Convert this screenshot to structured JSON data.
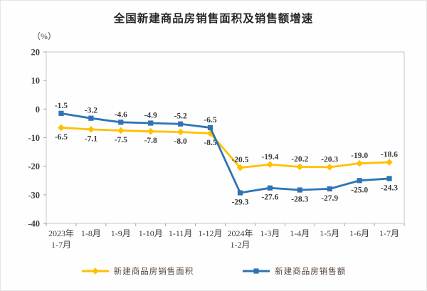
{
  "page": {
    "background": "#ffffff",
    "border_color": "#e6e6e6"
  },
  "chart_data": {
    "type": "line",
    "title": "全国新建商品房销售面积及销售额增速",
    "unit_label": "（%）",
    "xlabel": "",
    "ylabel": "（%）",
    "ylim": [
      -40,
      20
    ],
    "ytick_step": 10,
    "yticks": [
      20,
      10,
      0,
      -10,
      -20,
      -30,
      -40
    ],
    "grid": false,
    "legend_position": "bottom",
    "categories": [
      [
        "2023年",
        "1-7月"
      ],
      [
        "1-8月"
      ],
      [
        "1-9月"
      ],
      [
        "1-10月"
      ],
      [
        "1-11月"
      ],
      [
        "1-12月"
      ],
      [
        "2024年",
        "1-2月"
      ],
      [
        "1-3月"
      ],
      [
        "1-4月"
      ],
      [
        "1-5月"
      ],
      [
        "1-6月"
      ],
      [
        "1-7月"
      ]
    ],
    "series": [
      {
        "id": "sales-area",
        "name": "新建商品房销售面积",
        "color": "#FFC000",
        "marker": "diamond",
        "values": [
          -6.5,
          -7.1,
          -7.5,
          -7.8,
          -8.0,
          -8.5,
          -20.5,
          -19.4,
          -20.2,
          -20.3,
          -19.0,
          -18.6
        ],
        "label_side": [
          "below",
          "below",
          "below",
          "below",
          "below",
          "below",
          "above",
          "above",
          "above",
          "above",
          "above",
          "above"
        ]
      },
      {
        "id": "sales-amount",
        "name": "新建商品房销售额",
        "color": "#2E74B5",
        "marker": "square",
        "values": [
          -1.5,
          -3.2,
          -4.6,
          -4.9,
          -5.2,
          -6.5,
          -29.3,
          -27.6,
          -28.3,
          -27.9,
          -25.0,
          -24.3
        ],
        "label_side": [
          "above",
          "above",
          "above",
          "above",
          "above",
          "above",
          "below",
          "below",
          "below",
          "below",
          "below",
          "below"
        ]
      }
    ],
    "colors": {
      "plot_border": "#c6c6c6",
      "axis": "#a3a3a3",
      "tick_text": "#404040",
      "data_label": "#3a3a3a",
      "legend_text": "#55443a",
      "title_text": "#262626"
    }
  }
}
